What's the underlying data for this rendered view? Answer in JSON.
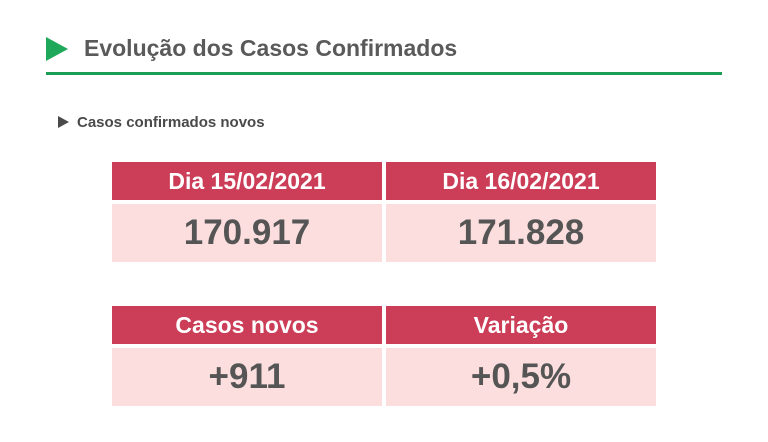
{
  "header": {
    "title": "Evolução dos Casos Confirmados"
  },
  "section": {
    "subtitle": "Casos confirmados novos"
  },
  "table1": {
    "columns": [
      {
        "label": "Dia 15/02/2021",
        "value": "170.917"
      },
      {
        "label": "Dia 16/02/2021",
        "value": "171.828"
      }
    ]
  },
  "table2": {
    "columns": [
      {
        "label": "Casos novos",
        "value": "+911"
      },
      {
        "label": "Variação",
        "value": "+0,5%"
      }
    ]
  },
  "colors": {
    "accent_green": "#1ea85a",
    "header_red": "#cc3e58",
    "value_pink": "#fcdede"
  }
}
